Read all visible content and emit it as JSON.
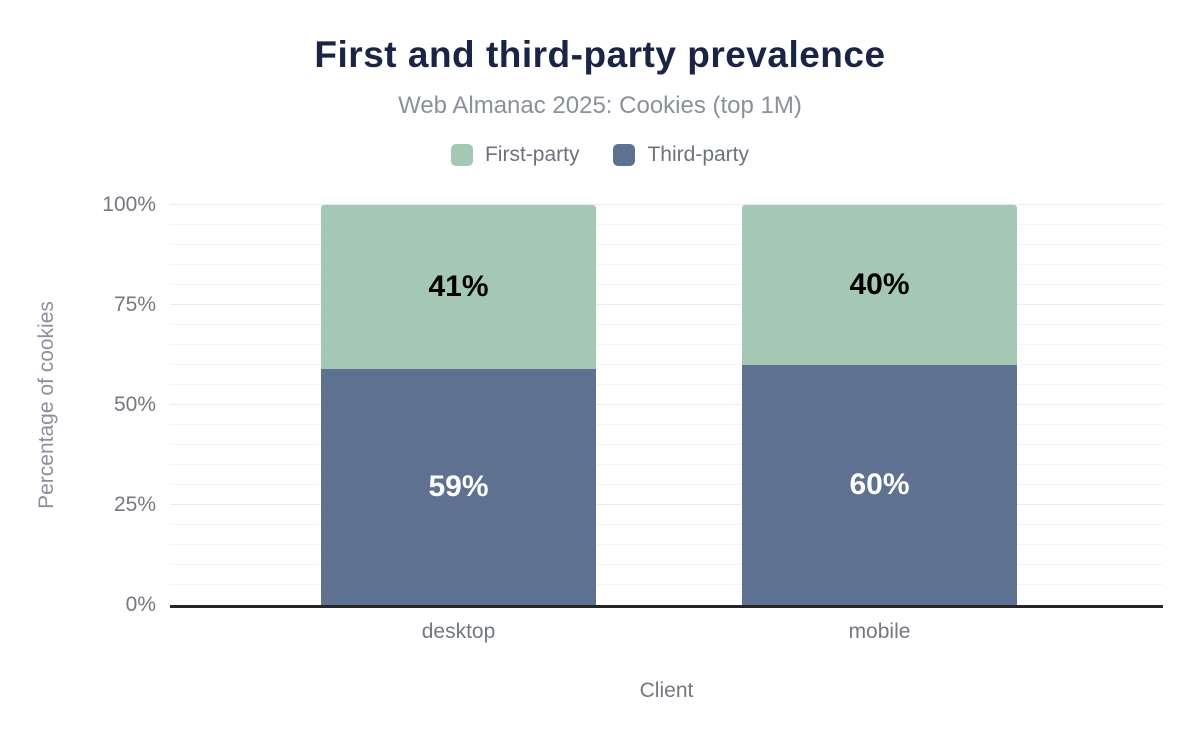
{
  "page": {
    "background": "#ffffff"
  },
  "chart_data": {
    "type": "bar",
    "stacked": true,
    "title": "First and third-party prevalence",
    "subtitle": "Web Almanac 2025: Cookies (top 1M)",
    "xlabel": "Client",
    "ylabel": "Percentage of cookies",
    "categories": [
      "desktop",
      "mobile"
    ],
    "series": [
      {
        "name": "First-party",
        "values": [
          41,
          40
        ],
        "color": "#a4c8b4",
        "label_color": "#000000"
      },
      {
        "name": "Third-party",
        "values": [
          59,
          60
        ],
        "color": "#5f7190",
        "label_color": "#ffffff"
      }
    ],
    "stack_order_top_to_bottom": [
      "First-party",
      "Third-party"
    ],
    "value_suffix": "%",
    "ylim": [
      0,
      100
    ],
    "yticks": [
      {
        "value": 0,
        "label": "0%"
      },
      {
        "value": 25,
        "label": "25%"
      },
      {
        "value": 50,
        "label": "50%"
      },
      {
        "value": 75,
        "label": "75%"
      },
      {
        "value": 100,
        "label": "100%"
      }
    ],
    "grid": {
      "minor_step": 5,
      "major_step": 25,
      "minor_color": "#f5f5f6",
      "major_color": "#ebebee"
    },
    "legend_position": "top",
    "colors": {
      "title": "#1a2444",
      "subtitle": "#8b909a",
      "axis_text": "#74787f",
      "axis_line": "#262626"
    }
  }
}
